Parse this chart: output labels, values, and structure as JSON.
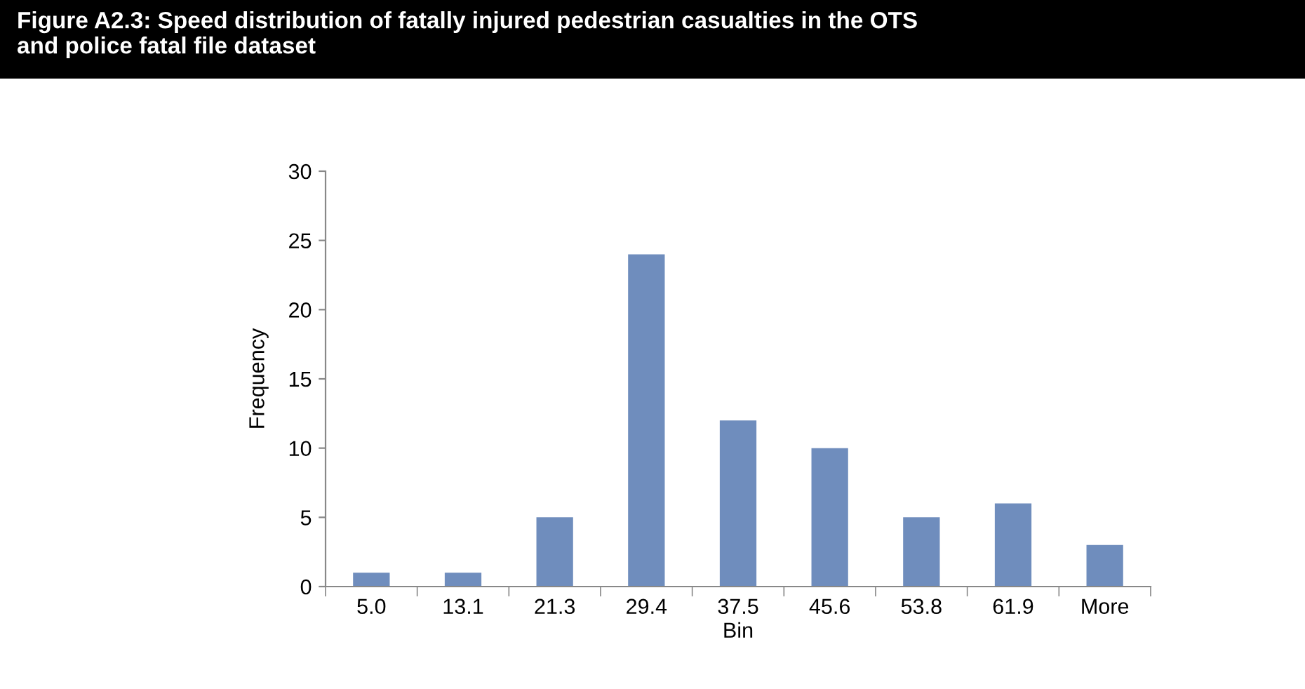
{
  "chart_data": {
    "type": "bar",
    "title": "Figure A2.3: Speed distribution of fatally injured pedestrian casualties in the OTS\nand police fatal file dataset",
    "xlabel": "Bin",
    "ylabel": "Frequency",
    "categories": [
      "5.0",
      "13.1",
      "21.3",
      "29.4",
      "37.5",
      "45.6",
      "53.8",
      "61.9",
      "More"
    ],
    "values": [
      1,
      1,
      5,
      24,
      12,
      10,
      5,
      6,
      3
    ],
    "color": "#6f8dbd",
    "ylim": [
      0,
      30
    ],
    "yticks": [
      0,
      5,
      10,
      15,
      20,
      25,
      30
    ],
    "grid": false
  }
}
